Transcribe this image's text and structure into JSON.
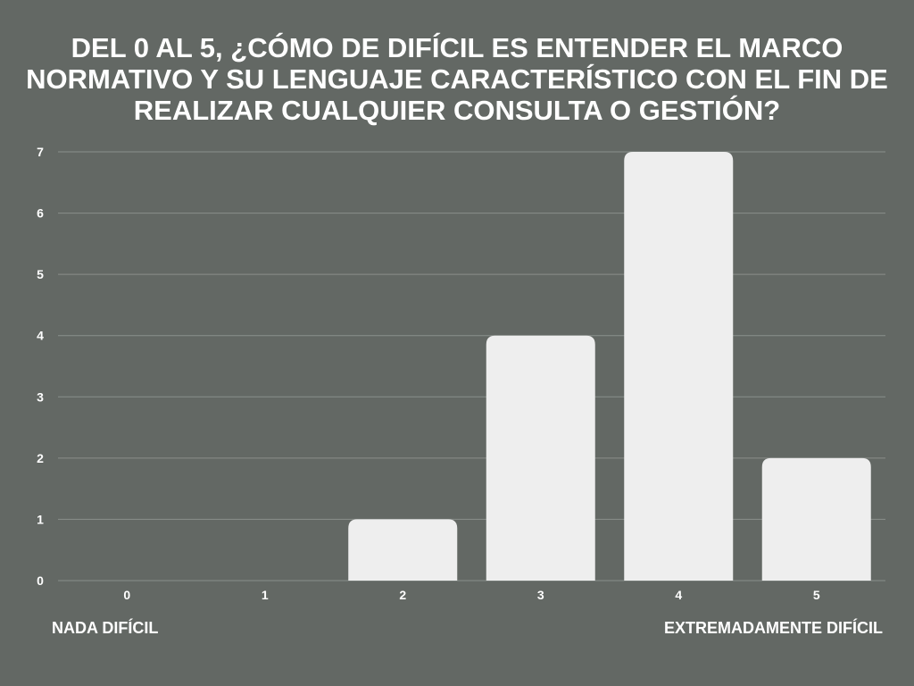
{
  "chart_data": {
    "type": "bar",
    "title": "DEL 0 AL 5, ¿CÓMO DE DIFÍCIL ES ENTENDER EL MARCO NORMATIVO Y SU LENGUAJE CARACTERÍSTICO CON EL FIN DE REALIZAR CUALQUIER CONSULTA O GESTIÓN?",
    "categories": [
      "0",
      "1",
      "2",
      "3",
      "4",
      "5"
    ],
    "values": [
      0,
      0,
      1,
      4,
      7,
      2
    ],
    "xlabel": "",
    "ylabel": "",
    "ylim": [
      0,
      7
    ],
    "yticks": [
      0,
      1,
      2,
      3,
      4,
      5,
      6,
      7
    ],
    "grid": true,
    "legend": "none",
    "annotations": {
      "left": "NADA DIFÍCIL",
      "right": "EXTREMADAMENTE DIFÍCIL"
    }
  },
  "colors": {
    "background": "#636864",
    "bar": "#eeeeee",
    "grid": "#8a8f8b",
    "text": "#ffffff"
  }
}
